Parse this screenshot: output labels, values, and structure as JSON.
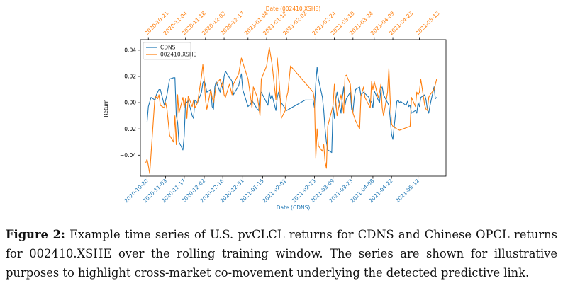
{
  "chart_data": {
    "type": "line",
    "ylabel": "Return",
    "ylim": [
      -0.056,
      0.048
    ],
    "yticks": [
      -0.04,
      -0.02,
      0.0,
      0.02,
      0.04
    ],
    "ytick_labels": [
      "−0.04",
      "−0.02",
      "0.00",
      "0.02",
      "0.04"
    ],
    "bottom_axis": {
      "label": "Date (CDNS)",
      "color": "#1f77b4",
      "range": [
        "2020-10-15",
        "2021-06-02"
      ],
      "ticks": [
        "2020-10-20",
        "2020-11-03",
        "2020-11-17",
        "2020-12-02",
        "2020-12-16",
        "2020-12-31",
        "2021-01-15",
        "2021-02-01",
        "2021-02-23",
        "2021-03-09",
        "2021-03-23",
        "2021-04-08",
        "2021-04-22",
        "2021-05-12"
      ]
    },
    "top_axis": {
      "label": "Date (002410.XSHE)",
      "color": "#ff7f0e",
      "range": [
        "2020-10-15",
        "2021-06-02"
      ],
      "ticks": [
        "2020-10-21",
        "2020-11-04",
        "2020-11-18",
        "2020-12-03",
        "2020-12-17",
        "2021-01-04",
        "2021-01-18",
        "2021-02-02",
        "2021-02-24",
        "2021-03-10",
        "2021-03-24",
        "2021-04-09",
        "2021-04-23",
        "2021-05-13"
      ]
    },
    "legend_position": "top-left",
    "series": [
      {
        "name": "CDNS",
        "color": "#1f77b4",
        "dates": [
          "2020-10-20",
          "2020-10-21",
          "2020-10-23",
          "2020-10-26",
          "2020-10-27",
          "2020-10-29",
          "2020-10-30",
          "2020-11-02",
          "2020-11-04",
          "2020-11-05",
          "2020-11-06",
          "2020-11-09",
          "2020-11-10",
          "2020-11-11",
          "2020-11-12",
          "2020-11-13",
          "2020-11-16",
          "2020-11-17",
          "2020-11-18",
          "2020-11-19",
          "2020-11-20",
          "2020-11-23",
          "2020-11-24",
          "2020-11-25",
          "2020-11-27",
          "2020-11-30",
          "2020-12-01",
          "2020-12-02",
          "2020-12-03",
          "2020-12-04",
          "2020-12-07",
          "2020-12-08",
          "2020-12-09",
          "2020-12-10",
          "2020-12-11",
          "2020-12-14",
          "2020-12-15",
          "2020-12-16",
          "2020-12-17",
          "2020-12-18",
          "2020-12-21",
          "2020-12-22",
          "2020-12-23",
          "2020-12-24",
          "2020-12-28",
          "2020-12-29",
          "2020-12-30",
          "2020-12-31",
          "2021-01-04",
          "2021-01-05",
          "2021-01-06",
          "2021-01-07",
          "2021-01-08",
          "2021-01-11",
          "2021-01-12",
          "2021-01-13",
          "2021-01-14",
          "2021-01-15",
          "2021-01-19",
          "2021-01-20",
          "2021-01-21",
          "2021-01-22",
          "2021-01-25",
          "2021-01-26",
          "2021-01-27",
          "2021-01-29",
          "2021-02-02",
          "2021-02-09",
          "2021-02-16",
          "2021-02-18",
          "2021-02-19",
          "2021-02-22",
          "2021-02-23",
          "2021-02-24",
          "2021-02-25",
          "2021-02-26",
          "2021-03-01",
          "2021-03-02",
          "2021-03-03",
          "2021-03-04",
          "2021-03-05",
          "2021-03-08",
          "2021-03-09",
          "2021-03-10",
          "2021-03-11",
          "2021-03-12",
          "2021-03-15",
          "2021-03-16",
          "2021-03-17",
          "2021-03-18",
          "2021-03-19",
          "2021-03-22",
          "2021-03-23",
          "2021-03-24",
          "2021-03-25",
          "2021-03-26",
          "2021-03-29",
          "2021-03-30",
          "2021-03-31",
          "2021-04-01",
          "2021-04-05",
          "2021-04-06",
          "2021-04-07",
          "2021-04-08",
          "2021-04-09",
          "2021-04-12",
          "2021-04-13",
          "2021-04-14",
          "2021-04-15",
          "2021-04-16",
          "2021-04-19",
          "2021-04-20",
          "2021-04-21",
          "2021-04-22",
          "2021-04-23",
          "2021-04-26",
          "2021-04-27",
          "2021-04-28",
          "2021-04-29",
          "2021-04-30",
          "2021-05-03",
          "2021-05-04",
          "2021-05-05",
          "2021-05-06",
          "2021-05-07",
          "2021-05-10",
          "2021-05-11",
          "2021-05-12",
          "2021-05-13",
          "2021-05-14",
          "2021-05-17",
          "2021-05-18",
          "2021-05-19",
          "2021-05-20",
          "2021-05-21",
          "2021-05-24",
          "2021-05-25",
          "2021-05-26"
        ],
        "values": [
          -0.015,
          -0.003,
          0.004,
          0.002,
          0.006,
          0.01,
          0.01,
          -0.002,
          0.006,
          0.012,
          0.018,
          0.019,
          0.019,
          -0.01,
          -0.015,
          -0.03,
          -0.036,
          -0.025,
          0.001,
          0.0,
          0.002,
          -0.01,
          -0.012,
          0.002,
          0.0,
          0.008,
          0.015,
          0.017,
          0.013,
          0.008,
          0.01,
          -0.003,
          -0.005,
          0.012,
          0.016,
          0.008,
          0.015,
          0.01,
          0.02,
          0.024,
          0.019,
          0.018,
          0.016,
          0.006,
          0.013,
          0.018,
          0.022,
          0.01,
          -0.003,
          -0.002,
          -0.001,
          0.002,
          0.0,
          -0.005,
          -0.006,
          0.005,
          0.008,
          0.006,
          -0.002,
          0.008,
          0.003,
          0.006,
          -0.006,
          0.004,
          0.008,
          0.0,
          -0.006,
          -0.002,
          0.002,
          0.002,
          0.002,
          0.002,
          -0.004,
          0.015,
          0.027,
          0.018,
          0.004,
          -0.006,
          -0.02,
          -0.03,
          -0.036,
          -0.038,
          -0.003,
          -0.012,
          0.002,
          0.008,
          -0.008,
          0.004,
          0.012,
          -0.002,
          0.003,
          0.008,
          -0.005,
          -0.007,
          0.004,
          0.01,
          0.012,
          0.005,
          0.007,
          0.008,
          0.004,
          0.0,
          0.001,
          -0.004,
          0.009,
          0.002,
          0.0,
          0.01,
          0.012,
          0.006,
          0.0,
          -0.002,
          -0.012,
          -0.024,
          -0.028,
          0.001,
          0.002,
          0.0,
          0.001,
          0.0,
          -0.002,
          0.001,
          -0.003,
          -0.002,
          -0.008,
          -0.006,
          -0.008,
          0.0,
          -0.003,
          0.004,
          0.006,
          0.002,
          -0.005,
          -0.008,
          -0.002,
          0.012,
          0.003,
          0.004
        ]
      },
      {
        "name": "002410.XSHE",
        "color": "#ff7f0e",
        "dates": [
          "2020-10-19",
          "2020-10-20",
          "2020-10-21",
          "2020-10-22",
          "2020-10-26",
          "2020-10-28",
          "2020-10-29",
          "2020-10-30",
          "2020-11-02",
          "2020-11-03",
          "2020-11-04",
          "2020-11-06",
          "2020-11-09",
          "2020-11-10",
          "2020-11-11",
          "2020-11-12",
          "2020-11-13",
          "2020-11-16",
          "2020-11-17",
          "2020-11-18",
          "2020-11-19",
          "2020-11-20",
          "2020-11-23",
          "2020-11-24",
          "2020-11-25",
          "2020-11-27",
          "2020-11-30",
          "2020-12-01",
          "2020-12-02",
          "2020-12-03",
          "2020-12-04",
          "2020-12-07",
          "2020-12-08",
          "2020-12-09",
          "2020-12-10",
          "2020-12-11",
          "2020-12-14",
          "2020-12-15",
          "2020-12-16",
          "2020-12-17",
          "2020-12-18",
          "2020-12-21",
          "2020-12-22",
          "2020-12-23",
          "2020-12-24",
          "2020-12-28",
          "2020-12-30",
          "2021-01-04",
          "2021-01-06",
          "2021-01-07",
          "2021-01-08",
          "2021-01-11",
          "2021-01-12",
          "2021-01-13",
          "2021-01-14",
          "2021-01-18",
          "2021-01-20",
          "2021-01-22",
          "2021-01-25",
          "2021-01-26",
          "2021-01-27",
          "2021-01-28",
          "2021-01-29",
          "2021-02-01",
          "2021-02-02",
          "2021-02-03",
          "2021-02-05",
          "2021-02-22",
          "2021-02-23",
          "2021-02-24",
          "2021-02-25",
          "2021-02-26",
          "2021-03-01",
          "2021-03-02",
          "2021-03-03",
          "2021-03-04",
          "2021-03-05",
          "2021-03-08",
          "2021-03-09",
          "2021-03-10",
          "2021-03-11",
          "2021-03-12",
          "2021-03-15",
          "2021-03-16",
          "2021-03-17",
          "2021-03-18",
          "2021-03-19",
          "2021-03-22",
          "2021-03-23",
          "2021-03-24",
          "2021-03-26",
          "2021-03-29",
          "2021-03-30",
          "2021-04-01",
          "2021-04-02",
          "2021-04-06",
          "2021-04-07",
          "2021-04-08",
          "2021-04-09",
          "2021-04-12",
          "2021-04-13",
          "2021-04-14",
          "2021-04-15",
          "2021-04-16",
          "2021-04-19",
          "2021-04-20",
          "2021-04-21",
          "2021-04-22",
          "2021-04-23",
          "2021-04-26",
          "2021-04-28",
          "2021-05-06",
          "2021-05-07",
          "2021-05-10",
          "2021-05-11",
          "2021-05-12",
          "2021-05-13",
          "2021-05-14",
          "2021-05-17",
          "2021-05-18",
          "2021-05-19",
          "2021-05-20",
          "2021-05-21",
          "2021-05-24",
          "2021-05-25",
          "2021-05-26"
        ],
        "values": [
          -0.046,
          -0.043,
          -0.048,
          -0.054,
          0.005,
          0.003,
          0.006,
          -0.002,
          -0.004,
          0.0,
          -0.005,
          -0.025,
          -0.03,
          -0.01,
          -0.032,
          0.006,
          -0.008,
          0.004,
          -0.004,
          0.003,
          -0.012,
          0.005,
          -0.003,
          0.002,
          -0.004,
          0.0,
          0.02,
          0.029,
          0.018,
          0.002,
          -0.005,
          0.01,
          0.004,
          0.0,
          0.006,
          0.014,
          0.018,
          0.012,
          0.016,
          0.006,
          0.004,
          0.014,
          0.01,
          0.006,
          0.014,
          0.022,
          0.034,
          0.018,
          0.004,
          -0.004,
          0.012,
          0.004,
          -0.002,
          -0.01,
          0.018,
          0.028,
          0.042,
          0.03,
          0.002,
          0.034,
          0.022,
          0.008,
          -0.012,
          -0.006,
          0.004,
          0.008,
          0.028,
          0.008,
          0.002,
          -0.042,
          -0.02,
          -0.033,
          -0.037,
          -0.032,
          -0.045,
          -0.05,
          -0.018,
          -0.006,
          -0.002,
          0.014,
          0.002,
          -0.01,
          0.006,
          0.0,
          -0.008,
          0.02,
          0.021,
          0.014,
          0.0,
          -0.008,
          -0.014,
          -0.02,
          0.005,
          0.012,
          0.004,
          -0.004,
          0.016,
          0.01,
          0.016,
          0.004,
          0.008,
          0.014,
          -0.004,
          -0.01,
          0.008,
          0.026,
          0.002,
          -0.016,
          -0.018,
          -0.02,
          -0.021,
          -0.018,
          0.004,
          -0.003,
          0.008,
          0.006,
          0.008,
          0.018,
          -0.002,
          -0.005,
          -0.006,
          0.004,
          0.006,
          0.01,
          0.014,
          0.018
        ]
      }
    ]
  },
  "caption": {
    "label": "Figure 2:",
    "text": "Example time series of U.S. pvCLCL returns for CDNS and Chinese OPCL returns for 002410.XSHE over the rolling training window. The series are shown for illustrative purposes to highlight cross-market co-movement underlying the detected predictive link."
  }
}
